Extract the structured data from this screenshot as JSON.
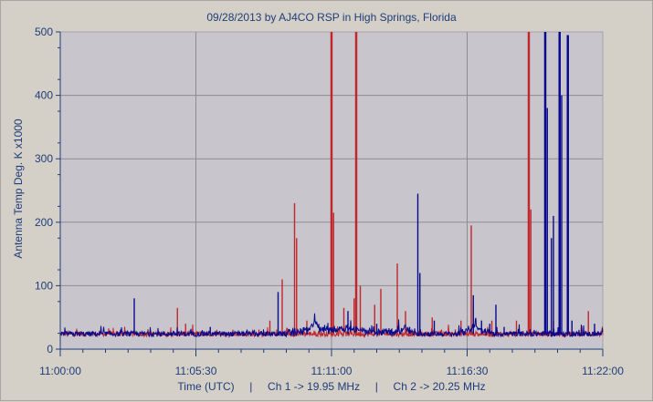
{
  "chart_data": {
    "type": "line",
    "title": "09/28/2013  by  AJ4CO RSP  in  High Springs, Florida",
    "ylabel": "Antenna Temp Deg. K x1000",
    "xlabel": "Time (UTC)     |     Ch 1 -> 19.95 MHz     |     Ch 2 -> 20.25 MHz",
    "xlim": [
      "11:00:00",
      "11:22:00"
    ],
    "ylim": [
      0,
      500
    ],
    "grid": true,
    "x_ticks": [
      "11:00:00",
      "11:05:30",
      "11:11:00",
      "11:16:30",
      "11:22:00"
    ],
    "y_ticks": [
      0,
      100,
      200,
      300,
      400,
      500
    ],
    "baseline": 24,
    "series": [
      {
        "name": "Ch 1 -> 19.95 MHz",
        "color": "#c0282d",
        "spikes": [
          [
            "11:04:45",
            65
          ],
          [
            "11:05:05",
            40
          ],
          [
            "11:08:30",
            45
          ],
          [
            "11:09:00",
            110
          ],
          [
            "11:09:30",
            230
          ],
          [
            "11:09:35",
            175
          ],
          [
            "11:10:00",
            45
          ],
          [
            "11:11:00",
            500
          ],
          [
            "11:11:05",
            215
          ],
          [
            "11:11:30",
            65
          ],
          [
            "11:11:55",
            80
          ],
          [
            "11:12:00",
            500
          ],
          [
            "11:12:10",
            100
          ],
          [
            "11:12:45",
            70
          ],
          [
            "11:13:00",
            95
          ],
          [
            "11:13:40",
            135
          ],
          [
            "11:14:00",
            60
          ],
          [
            "11:15:05",
            50
          ],
          [
            "11:16:15",
            45
          ],
          [
            "11:16:40",
            195
          ],
          [
            "11:16:45",
            70
          ],
          [
            "11:17:30",
            45
          ],
          [
            "11:18:30",
            45
          ],
          [
            "11:19:00",
            500
          ],
          [
            "11:19:05",
            220
          ],
          [
            "11:20:00",
            45
          ],
          [
            "11:21:25",
            60
          ]
        ]
      },
      {
        "name": "Ch 2 -> 20.25 MHz",
        "color": "#0a0a8c",
        "spikes": [
          [
            "11:03:00",
            80
          ],
          [
            "11:06:05",
            35
          ],
          [
            "11:08:50",
            90
          ],
          [
            "11:11:40",
            60
          ],
          [
            "11:12:50",
            40
          ],
          [
            "11:14:10",
            35
          ],
          [
            "11:14:30",
            245
          ],
          [
            "11:14:35",
            120
          ],
          [
            "11:15:10",
            45
          ],
          [
            "11:16:45",
            85
          ],
          [
            "11:17:05",
            45
          ],
          [
            "11:17:25",
            40
          ],
          [
            "11:17:40",
            70
          ],
          [
            "11:18:00",
            35
          ],
          [
            "11:19:40",
            500
          ],
          [
            "11:19:45",
            380
          ],
          [
            "11:19:55",
            175
          ],
          [
            "11:20:00",
            210
          ],
          [
            "11:20:15",
            500
          ],
          [
            "11:20:20",
            400
          ],
          [
            "11:20:35",
            495
          ],
          [
            "11:20:45",
            45
          ],
          [
            "11:21:40",
            40
          ]
        ],
        "bumps": [
          [
            "11:10:20",
            11.0,
            10
          ],
          [
            "11:11:30",
            6.0,
            45
          ],
          [
            "11:14:00",
            8.0,
            8
          ],
          [
            "11:16:50",
            10.0,
            12
          ]
        ]
      }
    ]
  }
}
